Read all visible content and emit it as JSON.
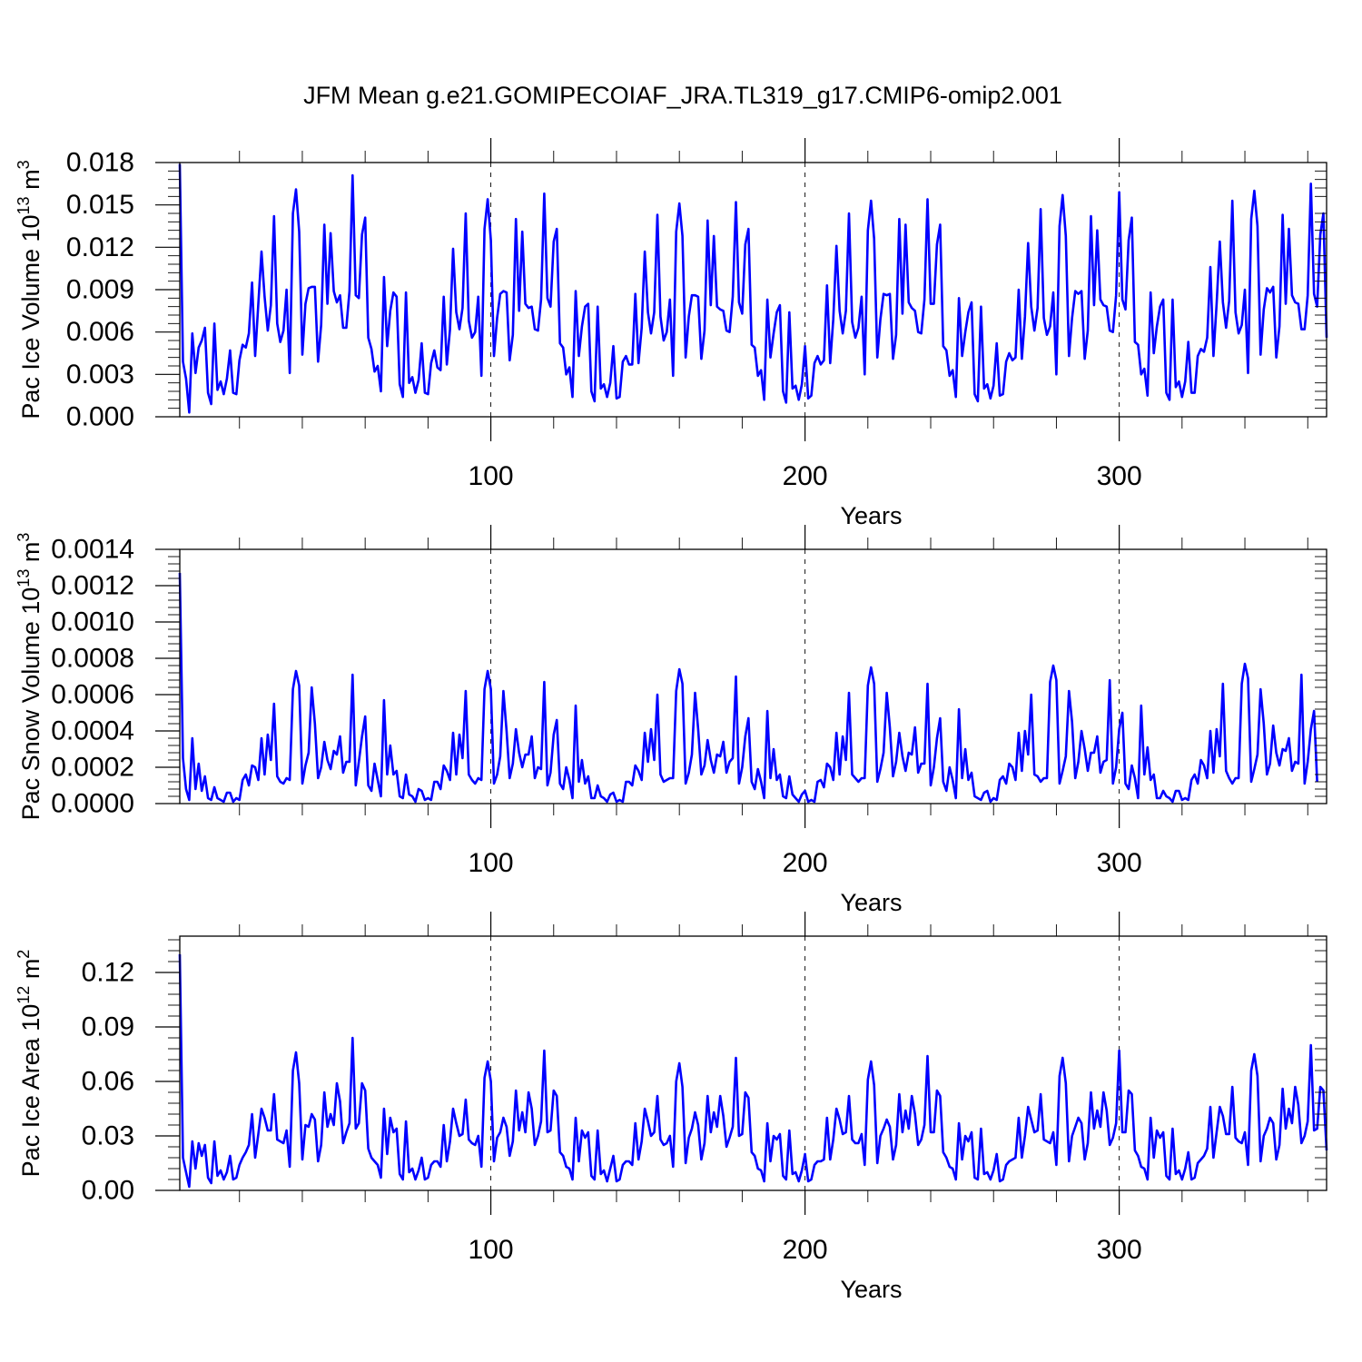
{
  "title": "JFM Mean g.e21.GOMIPECOIAF_JRA.TL319_g17.CMIP6-omip2.001",
  "series_color": "#0000ff",
  "chart_data": [
    {
      "type": "line",
      "title": "",
      "xlabel": "Years",
      "ylabel": "Pac Ice Volume 10",
      "ylabel_exp": "13",
      "ylabel_unit": " m",
      "ylabel_unit_exp": "3",
      "xlim": [
        1,
        366
      ],
      "ylim": [
        0,
        0.018
      ],
      "xticks": [
        100,
        200,
        300
      ],
      "xtick_labels": [
        "100",
        "200",
        "300"
      ],
      "yticks": [
        0,
        0.003,
        0.006,
        0.009,
        0.012,
        0.015,
        0.018
      ],
      "ytick_labels": [
        "0.000",
        "0.003",
        "0.006",
        "0.009",
        "0.012",
        "0.015",
        "0.018"
      ],
      "grid_x": [
        100,
        200,
        300
      ],
      "x_start": 1,
      "values": [
        0.0179,
        0.0039,
        0.0027,
        0.0003,
        0.0059,
        0.0031,
        0.0049,
        0.0054,
        0.0063,
        0.0017,
        0.0009,
        0.0066,
        0.0019,
        0.0025,
        0.0016,
        0.0027,
        0.0047,
        0.0017,
        0.0016,
        0.004,
        0.0051,
        0.0049,
        0.0059,
        0.0095,
        0.0043,
        0.008,
        0.0117,
        0.0085,
        0.0061,
        0.0079,
        0.0142,
        0.0066,
        0.0053,
        0.0061,
        0.009,
        0.0031,
        0.0144,
        0.0161,
        0.0131,
        0.0044,
        0.008,
        0.0091,
        0.0092,
        0.0092,
        0.0039,
        0.0065,
        0.0136,
        0.008,
        0.013,
        0.0089,
        0.0081,
        0.0086,
        0.0063,
        0.0063,
        0.0089,
        0.0171,
        0.0086,
        0.0084,
        0.0129,
        0.0141,
        0.0056,
        0.0048,
        0.0032,
        0.0036,
        0.0018,
        0.0099,
        0.005,
        0.0075,
        0.0088,
        0.0085,
        0.0023,
        0.0014,
        0.0088,
        0.0024,
        0.0028,
        0.0017,
        0.0026,
        0.0052,
        0.0017,
        0.0016,
        0.0038,
        0.0047,
        0.0035,
        0.0033,
        0.0085,
        0.0037,
        0.0062,
        0.0119,
        0.0074,
        0.0062,
        0.0077,
        0.0144,
        0.0068,
        0.0056,
        0.006,
        0.0085,
        0.0029,
        0.0133,
        0.0154,
        0.0125,
        0.0043,
        0.007,
        0.0087,
        0.0089,
        0.0088,
        0.004,
        0.0058,
        0.014,
        0.0075,
        0.0131,
        0.008,
        0.0077,
        0.0078,
        0.0062,
        0.0061,
        0.0083,
        0.0158,
        0.0084,
        0.0078,
        0.0124,
        0.0133,
        0.0052,
        0.0049,
        0.003,
        0.0035,
        0.0014,
        0.0089,
        0.0043,
        0.0064,
        0.0078,
        0.008,
        0.0018,
        0.0011,
        0.0078,
        0.002,
        0.0023,
        0.0014,
        0.0024,
        0.005,
        0.0013,
        0.0014,
        0.0039,
        0.0043,
        0.0037,
        0.0037,
        0.0087,
        0.0038,
        0.0063,
        0.0117,
        0.0074,
        0.0059,
        0.0074,
        0.0143,
        0.0071,
        0.0054,
        0.006,
        0.0083,
        0.0029,
        0.0131,
        0.0151,
        0.0128,
        0.0042,
        0.0071,
        0.0086,
        0.0086,
        0.0085,
        0.0041,
        0.0061,
        0.0139,
        0.0079,
        0.0128,
        0.0078,
        0.0076,
        0.0075,
        0.0061,
        0.006,
        0.0085,
        0.0152,
        0.0081,
        0.0073,
        0.0122,
        0.0133,
        0.0051,
        0.0049,
        0.0029,
        0.0033,
        0.0012,
        0.0083,
        0.0042,
        0.0059,
        0.0074,
        0.0079,
        0.0018,
        0.001,
        0.0074,
        0.002,
        0.0022,
        0.0012,
        0.0023,
        0.005,
        0.0013,
        0.0015,
        0.0038,
        0.0043,
        0.0037,
        0.004,
        0.0093,
        0.0038,
        0.0069,
        0.0121,
        0.0075,
        0.0059,
        0.0075,
        0.0144,
        0.0067,
        0.0056,
        0.0063,
        0.0085,
        0.003,
        0.0132,
        0.0153,
        0.0126,
        0.0042,
        0.0069,
        0.0087,
        0.0086,
        0.0087,
        0.0041,
        0.0058,
        0.014,
        0.0073,
        0.0136,
        0.0081,
        0.0077,
        0.0075,
        0.006,
        0.0059,
        0.0083,
        0.0154,
        0.008,
        0.008,
        0.0122,
        0.0136,
        0.005,
        0.0047,
        0.0029,
        0.0033,
        0.0014,
        0.0084,
        0.0043,
        0.006,
        0.0074,
        0.0081,
        0.0016,
        0.0011,
        0.0078,
        0.002,
        0.0023,
        0.0013,
        0.0022,
        0.0052,
        0.0015,
        0.0016,
        0.0039,
        0.0045,
        0.004,
        0.0042,
        0.009,
        0.0041,
        0.0071,
        0.0123,
        0.0078,
        0.0061,
        0.0077,
        0.0147,
        0.007,
        0.0058,
        0.0064,
        0.0088,
        0.003,
        0.0135,
        0.0157,
        0.0128,
        0.0043,
        0.007,
        0.0089,
        0.0087,
        0.0089,
        0.0041,
        0.0061,
        0.0142,
        0.0079,
        0.0132,
        0.0083,
        0.0079,
        0.0078,
        0.0061,
        0.006,
        0.0086,
        0.0159,
        0.0083,
        0.0076,
        0.0125,
        0.0141,
        0.0053,
        0.0051,
        0.003,
        0.0034,
        0.0015,
        0.0088,
        0.0045,
        0.0064,
        0.0078,
        0.0083,
        0.0017,
        0.0012,
        0.0083,
        0.0021,
        0.0025,
        0.0014,
        0.0025,
        0.0053,
        0.0017,
        0.0017,
        0.0043,
        0.0048,
        0.0046,
        0.0056,
        0.0106,
        0.0043,
        0.008,
        0.0124,
        0.0081,
        0.0063,
        0.0082,
        0.0153,
        0.0074,
        0.0059,
        0.0065,
        0.009,
        0.0031,
        0.014,
        0.016,
        0.0135,
        0.0044,
        0.0076,
        0.0091,
        0.0088,
        0.0092,
        0.0042,
        0.0064,
        0.0143,
        0.008,
        0.0133,
        0.0086,
        0.0081,
        0.008,
        0.0062,
        0.0062,
        0.0086,
        0.0165,
        0.0087,
        0.0078,
        0.0129,
        0.0144,
        0.0056
      ]
    },
    {
      "type": "line",
      "title": "",
      "xlabel": "Years",
      "ylabel": "Pac Snow Volume 10",
      "ylabel_exp": "13",
      "ylabel_unit": " m",
      "ylabel_unit_exp": "3",
      "xlim": [
        1,
        366
      ],
      "ylim": [
        0,
        0.0014
      ],
      "xticks": [
        100,
        200,
        300
      ],
      "xtick_labels": [
        "100",
        "200",
        "300"
      ],
      "yticks": [
        0,
        0.0002,
        0.0004,
        0.0006,
        0.0008,
        0.001,
        0.0012,
        0.0014
      ],
      "ytick_labels": [
        "0.0000",
        "0.0002",
        "0.0004",
        "0.0006",
        "0.0008",
        "0.0010",
        "0.0012",
        "0.0014"
      ],
      "grid_x": [
        100,
        200,
        300
      ],
      "x_start": 1,
      "values": [
        0.00127,
        0.00025,
        8e-05,
        2e-05,
        0.00036,
        8e-05,
        0.00022,
        7e-05,
        0.00015,
        3e-05,
        2e-05,
        9e-05,
        3e-05,
        2e-05,
        1e-05,
        6e-05,
        6e-05,
        1e-05,
        3e-05,
        2e-05,
        0.00013,
        0.00016,
        0.0001,
        0.00021,
        0.0002,
        0.00013,
        0.00036,
        0.00016,
        0.00038,
        0.00024,
        0.00055,
        0.00015,
        0.00012,
        0.00011,
        0.00014,
        0.00013,
        0.00063,
        0.00073,
        0.00065,
        0.00011,
        0.00021,
        0.00028,
        0.00064,
        0.00044,
        0.00014,
        0.0002,
        0.00034,
        0.00024,
        0.00019,
        0.00029,
        0.00027,
        0.00037,
        0.00017,
        0.00023,
        0.00023,
        0.00071,
        0.0001,
        0.00023,
        0.00037,
        0.00048,
        0.0001,
        7e-05,
        0.00022,
        0.00013,
        4e-05,
        0.00057,
        0.00016,
        0.00032,
        0.00016,
        0.00018,
        4e-05,
        3e-05,
        0.00016,
        5e-05,
        4e-05,
        1e-05,
        8e-05,
        7e-05,
        2e-05,
        3e-05,
        2e-05,
        0.00012,
        0.00012,
        8e-05,
        0.00021,
        0.00018,
        0.00013,
        0.00039,
        0.00016,
        0.00038,
        0.00025,
        0.00062,
        0.00016,
        0.00013,
        0.00011,
        0.00014,
        0.00013,
        0.00063,
        0.00073,
        0.00063,
        0.00011,
        0.00016,
        0.00026,
        0.00062,
        0.0004,
        0.00014,
        0.00022,
        0.00041,
        0.00028,
        0.0002,
        0.00027,
        0.00027,
        0.00037,
        0.00014,
        0.0002,
        0.00019,
        0.00067,
        0.0001,
        0.00017,
        0.00038,
        0.00046,
        0.00011,
        8e-05,
        0.0002,
        0.00013,
        3e-05,
        0.00054,
        0.00012,
        0.00024,
        0.00011,
        0.00015,
        3e-05,
        3e-05,
        0.0001,
        4e-05,
        3e-05,
        1e-05,
        5e-05,
        6e-05,
        1e-05,
        2e-05,
        1e-05,
        0.00012,
        0.00012,
        0.0001,
        0.00021,
        0.00018,
        0.00013,
        0.00039,
        0.00023,
        0.00041,
        0.00024,
        0.0006,
        0.00016,
        0.00012,
        0.00013,
        0.00014,
        0.00014,
        0.00062,
        0.00074,
        0.00066,
        0.00011,
        0.00017,
        0.00027,
        0.00061,
        0.00041,
        0.00016,
        0.00021,
        0.00035,
        0.00024,
        0.00017,
        0.00027,
        0.00026,
        0.00034,
        0.00017,
        0.00023,
        0.00025,
        0.0007,
        0.00011,
        0.0002,
        0.00037,
        0.00047,
        0.00012,
        8e-05,
        0.00019,
        0.00012,
        3e-05,
        0.00051,
        0.00014,
        0.0003,
        0.00013,
        0.00016,
        4e-05,
        3e-05,
        0.00015,
        5e-05,
        3e-05,
        1e-05,
        5e-05,
        7e-05,
        1e-05,
        2e-05,
        1e-05,
        0.00012,
        0.00013,
        9e-05,
        0.00022,
        0.0002,
        0.00013,
        0.00039,
        0.00016,
        0.00037,
        0.00024,
        0.00061,
        0.00016,
        0.00014,
        0.00012,
        0.00014,
        0.00014,
        0.00065,
        0.00075,
        0.00066,
        0.00012,
        0.00019,
        0.00028,
        0.00061,
        0.00042,
        0.00015,
        0.00023,
        0.00039,
        0.00026,
        0.00018,
        0.00028,
        0.00027,
        0.00042,
        0.00017,
        0.00022,
        0.00022,
        0.00066,
        0.0001,
        0.0002,
        0.00036,
        0.00047,
        0.00012,
        7e-05,
        0.0002,
        0.00013,
        3e-05,
        0.00052,
        0.00014,
        0.0003,
        0.00013,
        0.00017,
        4e-05,
        3e-05,
        2e-05,
        6e-05,
        7e-05,
        1e-05,
        3e-05,
        2e-05,
        0.00013,
        0.00015,
        0.00011,
        0.00022,
        0.0002,
        0.00013,
        0.00039,
        0.00018,
        0.0004,
        0.00027,
        0.0006,
        0.00016,
        0.00015,
        0.00012,
        0.00014,
        0.00014,
        0.00067,
        0.00076,
        0.00068,
        0.00011,
        0.00018,
        0.00026,
        0.00062,
        0.00045,
        0.00014,
        0.00023,
        0.0004,
        0.0003,
        0.00018,
        0.00028,
        0.00028,
        0.00037,
        0.00017,
        0.00023,
        0.00024,
        0.00068,
        0.00011,
        0.0002,
        0.00041,
        0.0005,
        0.00011,
        8e-05,
        0.00021,
        0.00014,
        3e-05,
        0.00054,
        0.00016,
        0.00031,
        0.00013,
        0.00016,
        3e-05,
        3e-05,
        7e-05,
        4e-05,
        3e-05,
        1e-05,
        7e-05,
        7e-05,
        2e-05,
        3e-05,
        2e-05,
        0.00013,
        0.00016,
        0.00011,
        0.00024,
        0.00021,
        0.00014,
        0.0004,
        0.00017,
        0.00041,
        0.00026,
        0.00066,
        0.00018,
        0.00014,
        0.00011,
        0.00014,
        0.00014,
        0.00066,
        0.00077,
        0.00069,
        0.00012,
        0.00019,
        0.00027,
        0.00063,
        0.00044,
        0.00016,
        0.00022,
        0.00043,
        0.00028,
        0.00021,
        0.0003,
        0.00029,
        0.00036,
        0.00018,
        0.00023,
        0.00022,
        0.00071,
        0.00011,
        0.00023,
        0.00041,
        0.00051,
        0.00012
      ]
    },
    {
      "type": "line",
      "title": "",
      "xlabel": "Years",
      "ylabel": "Pac Ice Area 10",
      "ylabel_exp": "12",
      "ylabel_unit": " m",
      "ylabel_unit_exp": "2",
      "xlim": [
        1,
        366
      ],
      "ylim": [
        0,
        0.14
      ],
      "xticks": [
        100,
        200,
        300
      ],
      "xtick_labels": [
        "100",
        "200",
        "300"
      ],
      "yticks": [
        0,
        0.03,
        0.06,
        0.09,
        0.12
      ],
      "ytick_labels": [
        "0.00",
        "0.03",
        "0.06",
        "0.09",
        "0.12"
      ],
      "grid_x": [
        100,
        200,
        300
      ],
      "x_start": 1,
      "values": [
        0.13,
        0.018,
        0.01,
        0.002,
        0.027,
        0.012,
        0.026,
        0.019,
        0.025,
        0.007,
        0.004,
        0.027,
        0.008,
        0.011,
        0.006,
        0.01,
        0.019,
        0.006,
        0.007,
        0.014,
        0.018,
        0.021,
        0.025,
        0.042,
        0.018,
        0.031,
        0.045,
        0.04,
        0.033,
        0.033,
        0.053,
        0.028,
        0.027,
        0.026,
        0.033,
        0.013,
        0.066,
        0.076,
        0.059,
        0.017,
        0.036,
        0.035,
        0.042,
        0.039,
        0.016,
        0.025,
        0.054,
        0.035,
        0.042,
        0.036,
        0.059,
        0.049,
        0.026,
        0.032,
        0.037,
        0.084,
        0.034,
        0.037,
        0.059,
        0.055,
        0.023,
        0.018,
        0.016,
        0.014,
        0.007,
        0.045,
        0.02,
        0.04,
        0.032,
        0.034,
        0.009,
        0.006,
        0.038,
        0.01,
        0.012,
        0.006,
        0.011,
        0.018,
        0.006,
        0.007,
        0.014,
        0.016,
        0.016,
        0.013,
        0.036,
        0.016,
        0.027,
        0.045,
        0.037,
        0.03,
        0.031,
        0.05,
        0.028,
        0.026,
        0.025,
        0.03,
        0.013,
        0.062,
        0.071,
        0.06,
        0.016,
        0.029,
        0.032,
        0.04,
        0.035,
        0.019,
        0.027,
        0.055,
        0.033,
        0.043,
        0.032,
        0.054,
        0.045,
        0.025,
        0.03,
        0.038,
        0.077,
        0.032,
        0.033,
        0.055,
        0.052,
        0.021,
        0.019,
        0.013,
        0.012,
        0.006,
        0.04,
        0.016,
        0.033,
        0.029,
        0.032,
        0.008,
        0.006,
        0.033,
        0.009,
        0.011,
        0.005,
        0.012,
        0.019,
        0.005,
        0.006,
        0.014,
        0.016,
        0.016,
        0.014,
        0.037,
        0.017,
        0.027,
        0.045,
        0.038,
        0.03,
        0.032,
        0.052,
        0.028,
        0.025,
        0.026,
        0.03,
        0.013,
        0.06,
        0.07,
        0.057,
        0.015,
        0.029,
        0.034,
        0.043,
        0.036,
        0.017,
        0.026,
        0.052,
        0.032,
        0.043,
        0.035,
        0.052,
        0.041,
        0.024,
        0.029,
        0.035,
        0.073,
        0.03,
        0.031,
        0.054,
        0.051,
        0.021,
        0.019,
        0.012,
        0.011,
        0.005,
        0.037,
        0.016,
        0.03,
        0.028,
        0.031,
        0.008,
        0.006,
        0.033,
        0.009,
        0.01,
        0.005,
        0.011,
        0.02,
        0.005,
        0.006,
        0.014,
        0.016,
        0.016,
        0.017,
        0.04,
        0.017,
        0.028,
        0.045,
        0.039,
        0.031,
        0.032,
        0.052,
        0.028,
        0.026,
        0.026,
        0.031,
        0.014,
        0.061,
        0.071,
        0.058,
        0.015,
        0.03,
        0.034,
        0.039,
        0.035,
        0.017,
        0.025,
        0.053,
        0.032,
        0.044,
        0.034,
        0.052,
        0.042,
        0.025,
        0.028,
        0.036,
        0.074,
        0.032,
        0.032,
        0.055,
        0.052,
        0.021,
        0.018,
        0.013,
        0.012,
        0.006,
        0.037,
        0.017,
        0.03,
        0.027,
        0.032,
        0.007,
        0.006,
        0.034,
        0.009,
        0.01,
        0.006,
        0.011,
        0.02,
        0.005,
        0.006,
        0.014,
        0.016,
        0.017,
        0.018,
        0.04,
        0.018,
        0.03,
        0.046,
        0.039,
        0.032,
        0.033,
        0.053,
        0.028,
        0.027,
        0.026,
        0.032,
        0.014,
        0.063,
        0.073,
        0.059,
        0.016,
        0.03,
        0.035,
        0.04,
        0.037,
        0.017,
        0.026,
        0.054,
        0.034,
        0.044,
        0.035,
        0.054,
        0.044,
        0.025,
        0.029,
        0.037,
        0.077,
        0.032,
        0.032,
        0.055,
        0.053,
        0.022,
        0.019,
        0.013,
        0.012,
        0.006,
        0.04,
        0.018,
        0.033,
        0.029,
        0.032,
        0.008,
        0.006,
        0.034,
        0.009,
        0.011,
        0.006,
        0.012,
        0.021,
        0.006,
        0.007,
        0.015,
        0.017,
        0.019,
        0.023,
        0.046,
        0.018,
        0.032,
        0.046,
        0.041,
        0.031,
        0.031,
        0.057,
        0.029,
        0.027,
        0.026,
        0.032,
        0.014,
        0.066,
        0.075,
        0.063,
        0.016,
        0.03,
        0.034,
        0.04,
        0.037,
        0.017,
        0.025,
        0.056,
        0.034,
        0.045,
        0.037,
        0.057,
        0.047,
        0.026,
        0.03,
        0.038,
        0.08,
        0.033,
        0.034,
        0.057,
        0.055,
        0.022
      ]
    }
  ]
}
